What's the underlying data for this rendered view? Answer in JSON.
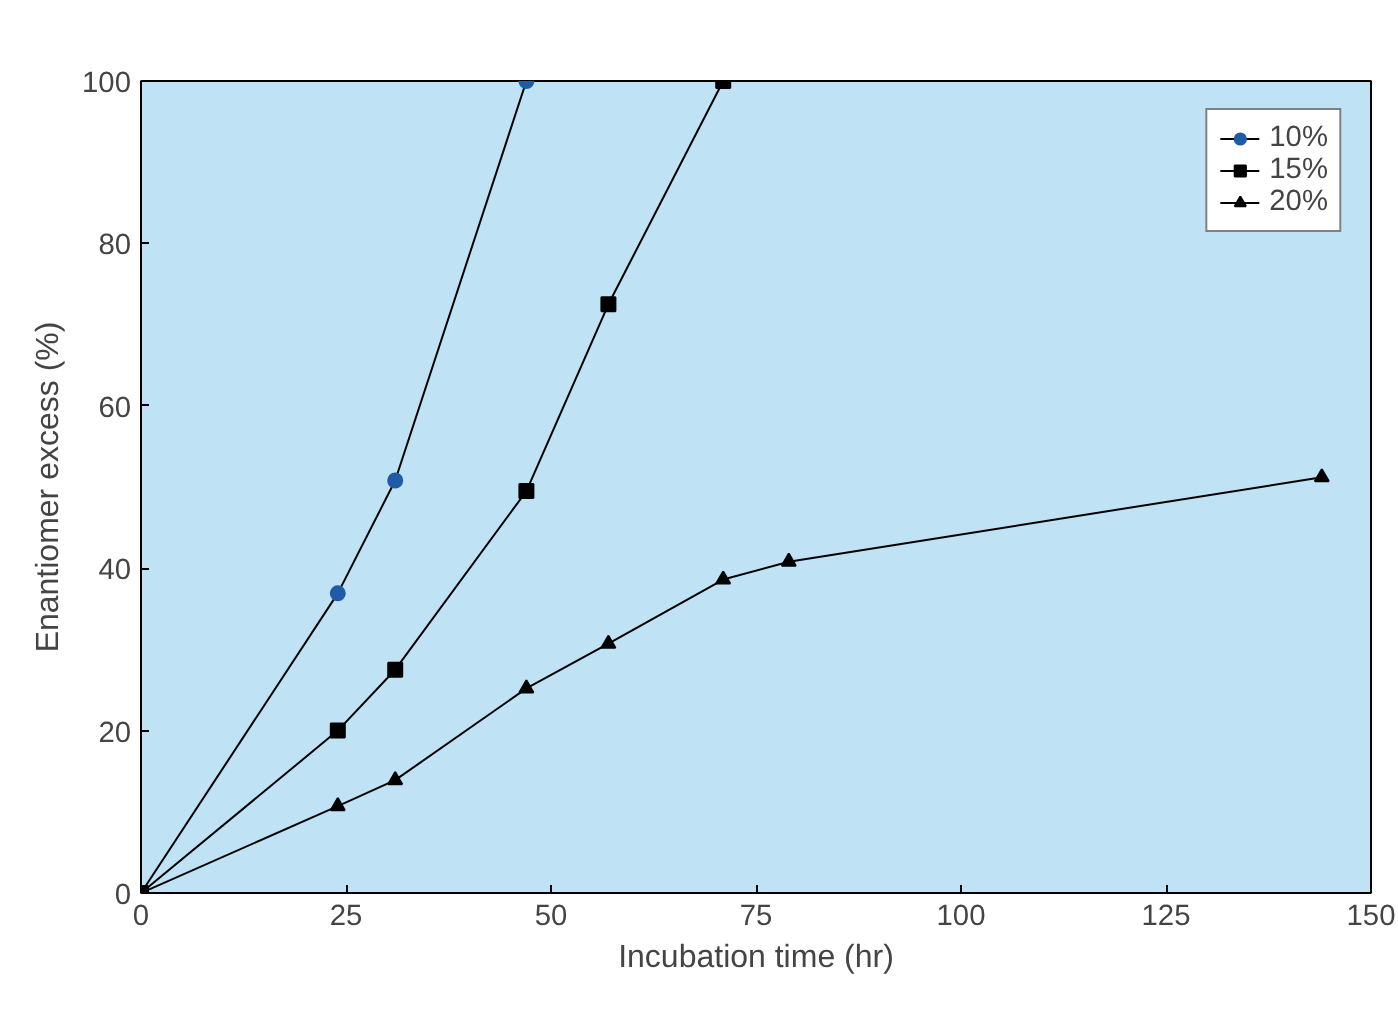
{
  "chart_data": {
    "type": "line",
    "xlabel": "Incubation time (hr)",
    "ylabel": "Enantiomer excess (%)",
    "xlim": [
      0,
      150
    ],
    "ylim": [
      0,
      100
    ],
    "xticks": [
      0,
      25,
      50,
      75,
      100,
      125,
      150
    ],
    "yticks": [
      0,
      20,
      40,
      60,
      80,
      100
    ],
    "grid": false,
    "legend": "top right",
    "line_style": "solid",
    "series": [
      {
        "name": "10%",
        "color": "#1f5ba6",
        "marker": "circle",
        "x": [
          0,
          24,
          31,
          47
        ],
        "values": [
          0,
          36.9,
          50.8,
          100
        ]
      },
      {
        "name": "15%",
        "color": "#000000",
        "marker": "square",
        "x": [
          0,
          24,
          31,
          47,
          57,
          71
        ],
        "values": [
          0,
          20,
          27.5,
          49.5,
          72.5,
          100
        ]
      },
      {
        "name": "20%",
        "color": "#000000",
        "marker": "triangle",
        "x": [
          0,
          24,
          31,
          47,
          57,
          71,
          79,
          144
        ],
        "values": [
          0,
          10.7,
          13.9,
          25.2,
          30.7,
          38.6,
          40.8,
          51.2
        ]
      }
    ]
  }
}
